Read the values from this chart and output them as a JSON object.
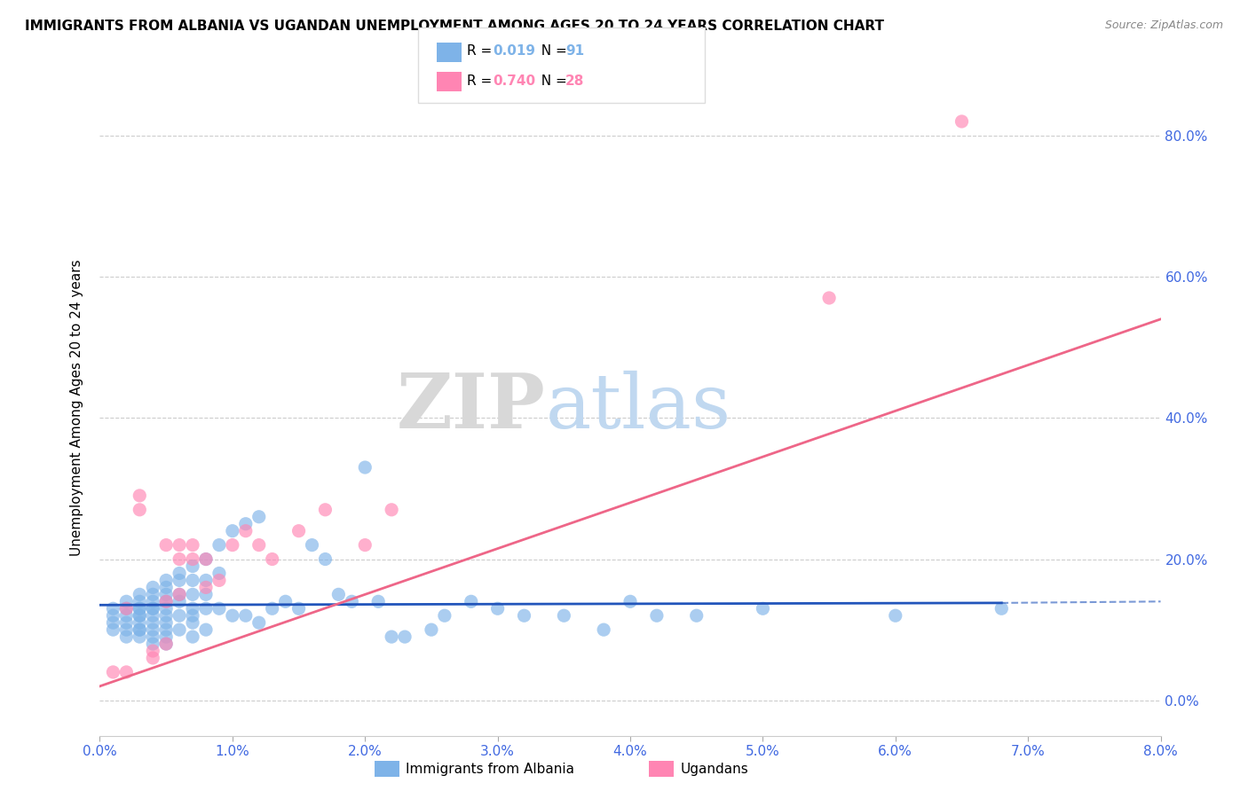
{
  "title": "IMMIGRANTS FROM ALBANIA VS UGANDAN UNEMPLOYMENT AMONG AGES 20 TO 24 YEARS CORRELATION CHART",
  "source": "Source: ZipAtlas.com",
  "ylabel": "Unemployment Among Ages 20 to 24 years",
  "xlabel_ticks": [
    "0.0%",
    "1.0%",
    "2.0%",
    "3.0%",
    "4.0%",
    "5.0%",
    "6.0%",
    "7.0%",
    "8.0%"
  ],
  "ylabel_ticks": [
    "0.0%",
    "20.0%",
    "40.0%",
    "60.0%",
    "80.0%"
  ],
  "xlim": [
    0.0,
    0.08
  ],
  "ylim": [
    -0.05,
    0.88
  ],
  "R_albania": 0.019,
  "N_albania": 91,
  "R_ugandan": 0.74,
  "N_ugandan": 28,
  "color_albania": "#7EB3E8",
  "color_ugandan": "#FF85B3",
  "color_trendline_albania": "#2255BB",
  "color_trendline_ugandan": "#EE6688",
  "watermark_zip": "ZIP",
  "watermark_atlas": "atlas",
  "legend_albania": "Immigrants from Albania",
  "legend_ugandan": "Ugandans",
  "albania_x": [
    0.001,
    0.001,
    0.001,
    0.001,
    0.002,
    0.002,
    0.002,
    0.002,
    0.002,
    0.002,
    0.003,
    0.003,
    0.003,
    0.003,
    0.003,
    0.003,
    0.003,
    0.003,
    0.003,
    0.003,
    0.004,
    0.004,
    0.004,
    0.004,
    0.004,
    0.004,
    0.004,
    0.004,
    0.004,
    0.004,
    0.005,
    0.005,
    0.005,
    0.005,
    0.005,
    0.005,
    0.005,
    0.005,
    0.005,
    0.005,
    0.006,
    0.006,
    0.006,
    0.006,
    0.006,
    0.006,
    0.007,
    0.007,
    0.007,
    0.007,
    0.007,
    0.007,
    0.007,
    0.008,
    0.008,
    0.008,
    0.008,
    0.008,
    0.009,
    0.009,
    0.009,
    0.01,
    0.01,
    0.011,
    0.011,
    0.012,
    0.012,
    0.013,
    0.014,
    0.015,
    0.016,
    0.017,
    0.018,
    0.019,
    0.02,
    0.021,
    0.022,
    0.023,
    0.025,
    0.026,
    0.028,
    0.03,
    0.032,
    0.035,
    0.038,
    0.04,
    0.042,
    0.045,
    0.05,
    0.06,
    0.068
  ],
  "albania_y": [
    0.13,
    0.12,
    0.11,
    0.1,
    0.14,
    0.13,
    0.12,
    0.11,
    0.1,
    0.09,
    0.15,
    0.14,
    0.13,
    0.13,
    0.12,
    0.12,
    0.11,
    0.1,
    0.1,
    0.09,
    0.16,
    0.15,
    0.14,
    0.13,
    0.13,
    0.12,
    0.11,
    0.1,
    0.09,
    0.08,
    0.17,
    0.16,
    0.15,
    0.14,
    0.13,
    0.12,
    0.11,
    0.1,
    0.09,
    0.08,
    0.18,
    0.17,
    0.15,
    0.14,
    0.12,
    0.1,
    0.19,
    0.17,
    0.15,
    0.13,
    0.12,
    0.11,
    0.09,
    0.2,
    0.17,
    0.15,
    0.13,
    0.1,
    0.22,
    0.18,
    0.13,
    0.24,
    0.12,
    0.25,
    0.12,
    0.26,
    0.11,
    0.13,
    0.14,
    0.13,
    0.22,
    0.2,
    0.15,
    0.14,
    0.33,
    0.14,
    0.09,
    0.09,
    0.1,
    0.12,
    0.14,
    0.13,
    0.12,
    0.12,
    0.1,
    0.14,
    0.12,
    0.12,
    0.13,
    0.12,
    0.13
  ],
  "ugandan_x": [
    0.001,
    0.002,
    0.002,
    0.003,
    0.003,
    0.004,
    0.004,
    0.005,
    0.005,
    0.005,
    0.006,
    0.006,
    0.006,
    0.007,
    0.007,
    0.008,
    0.008,
    0.009,
    0.01,
    0.011,
    0.012,
    0.013,
    0.015,
    0.017,
    0.02,
    0.022,
    0.055,
    0.065
  ],
  "ugandan_y": [
    0.04,
    0.13,
    0.04,
    0.29,
    0.27,
    0.07,
    0.06,
    0.22,
    0.14,
    0.08,
    0.22,
    0.2,
    0.15,
    0.22,
    0.2,
    0.2,
    0.16,
    0.17,
    0.22,
    0.24,
    0.22,
    0.2,
    0.24,
    0.27,
    0.22,
    0.27,
    0.57,
    0.82
  ],
  "trendline_albania_x0": 0.0,
  "trendline_albania_x1": 0.068,
  "trendline_albania_x2": 0.08,
  "trendline_albania_y0": 0.135,
  "trendline_albania_y1": 0.138,
  "trendline_ugandan_x0": 0.0,
  "trendline_ugandan_x1": 0.08,
  "trendline_ugandan_y0": 0.02,
  "trendline_ugandan_y1": 0.54
}
